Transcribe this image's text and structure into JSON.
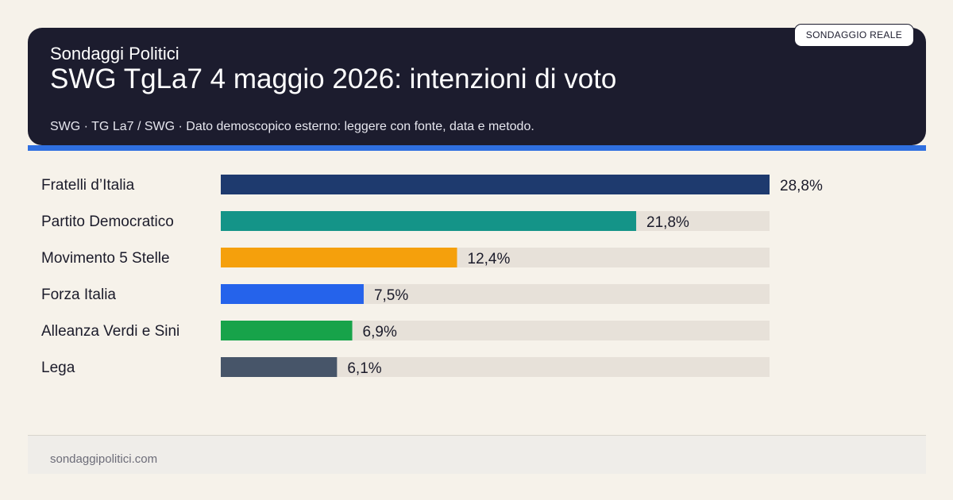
{
  "header": {
    "kicker": "Sondaggi Politici",
    "title": "SWG TgLa7 4 maggio 2026: intenzioni di voto",
    "source": "SWG · TG La7 / SWG · Dato demoscopico esterno: leggere con fonte, data e metodo.",
    "badge": "SONDAGGIO REALE"
  },
  "footer": {
    "site": "sondaggipolitici.com"
  },
  "colors": {
    "header_bg": "#1c1c2e",
    "accent": "#2f6fe0",
    "track": "#e7e1d9",
    "page_bg": "#f6f2ea"
  },
  "chart_data": {
    "type": "bar",
    "orientation": "horizontal",
    "grid": false,
    "categories": [
      "Fratelli d’Italia",
      "Partito Democratico",
      "Movimento 5 Stelle",
      "Forza Italia",
      "Alleanza Verdi e Sini",
      "Lega"
    ],
    "values": [
      28.8,
      21.8,
      12.4,
      7.5,
      6.9,
      6.1
    ],
    "value_labels": [
      "28,8%",
      "21,8%",
      "12,4%",
      "7,5%",
      "6,9%",
      "6,1%"
    ],
    "colors": [
      "#1e3a6e",
      "#149488",
      "#f5a00c",
      "#2563eb",
      "#17a34a",
      "#475569"
    ],
    "xlim": [
      0,
      28.8
    ]
  }
}
